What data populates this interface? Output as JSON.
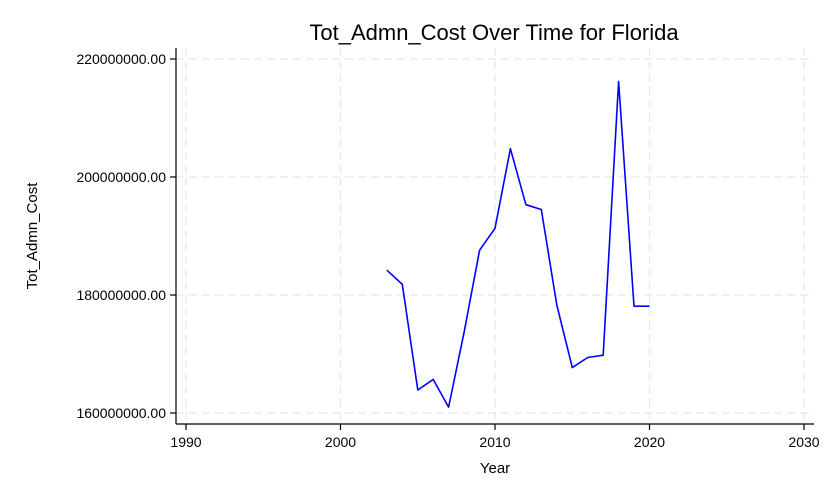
{
  "chart_data": {
    "type": "line",
    "title": "Tot_Admn_Cost Over Time for Florida",
    "xlabel": "Year",
    "ylabel": "Tot_Admn_Cost",
    "xlim": [
      1990,
      2030
    ],
    "ylim": [
      160000000,
      220000000
    ],
    "x_ticks": [
      1990,
      2000,
      2010,
      2020,
      2030
    ],
    "x_tick_labels": [
      "1990",
      "2000",
      "2010",
      "2020",
      "2030"
    ],
    "y_ticks": [
      160000000,
      180000000,
      200000000,
      220000000
    ],
    "y_tick_labels": [
      "160000000.00",
      "180000000.00",
      "200000000.00",
      "220000000.00"
    ],
    "grid": true,
    "series": [
      {
        "color": "#0000ff",
        "x": [
          2003,
          2004,
          2005,
          2006,
          2007,
          2008,
          2009,
          2010,
          2011,
          2012,
          2013,
          2014,
          2015,
          2016,
          2017,
          2018,
          2019,
          2020
        ],
        "values": [
          184200000,
          181800000,
          163900000,
          165700000,
          161000000,
          173700000,
          187600000,
          191300000,
          204800000,
          195300000,
          194500000,
          178300000,
          167700000,
          169400000,
          169800000,
          216200000,
          178100000,
          178100000
        ]
      }
    ]
  }
}
